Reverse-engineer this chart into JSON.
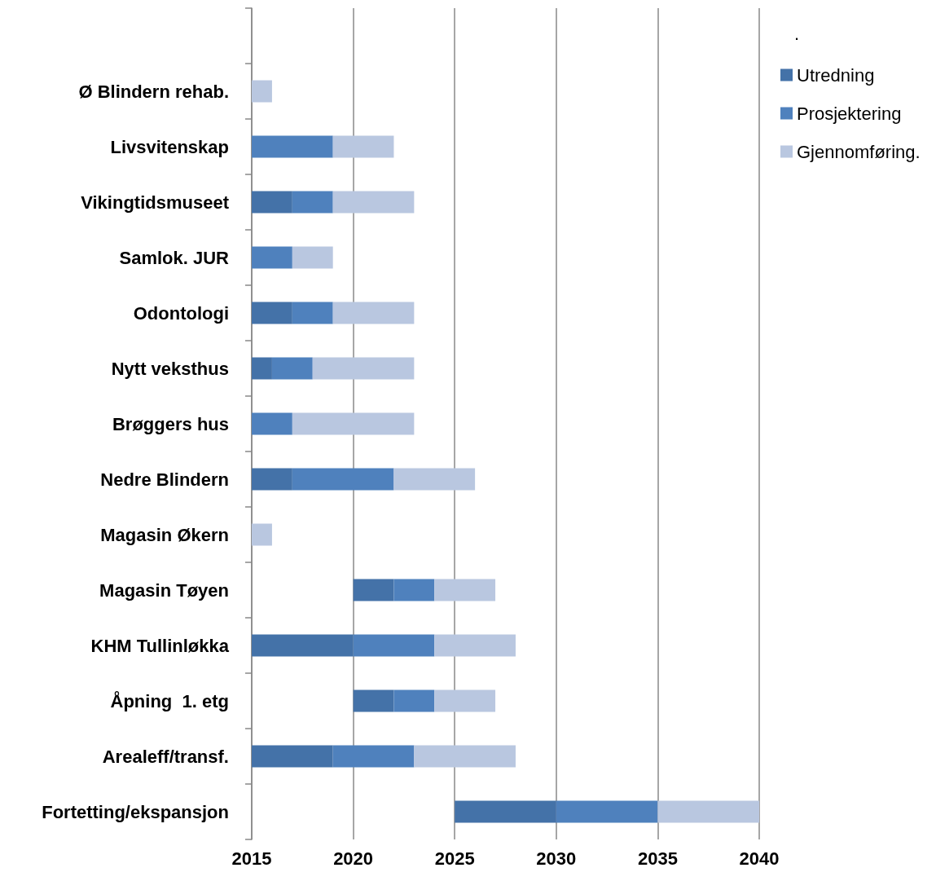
{
  "chart_data": {
    "type": "bar",
    "orientation": "horizontal",
    "categories": [
      null,
      "Ø Blindern rehab.",
      "Livsvitenskap",
      "Vikingtidsmuseet",
      "Samlok. JUR",
      "Odontologi",
      "Nytt veksthus",
      "Brøggers hus",
      "Nedre Blindern",
      "Magasin Økern",
      "Magasin Tøyen",
      "KHM Tullinløkka",
      "Åpning  1. etg",
      "Arealeff/transf.",
      "Fortetting/ekspansjon"
    ],
    "series": [
      {
        "name": "Utredning",
        "color": "#4472a8",
        "base": [
          null,
          null,
          null,
          2015,
          null,
          2015,
          2015,
          null,
          2015,
          null,
          2020,
          2015,
          2020,
          2015,
          2025
        ],
        "values": [
          null,
          null,
          null,
          2,
          null,
          2,
          1,
          null,
          2,
          null,
          2,
          5,
          2,
          4,
          5
        ]
      },
      {
        "name": "Prosjektering",
        "color": "#4f81bd",
        "base": [
          null,
          null,
          2015,
          2017,
          2015,
          2017,
          2016,
          2015,
          2017,
          null,
          2022,
          2020,
          2022,
          2019,
          2030
        ],
        "values": [
          null,
          null,
          4,
          2,
          2,
          2,
          2,
          2,
          5,
          null,
          2,
          4,
          2,
          4,
          5
        ]
      },
      {
        "name": "Gjennomføring.",
        "color": "#b9c7e0",
        "base": [
          null,
          2015,
          2019,
          2019,
          2017,
          2019,
          2018,
          2017,
          2022,
          2015,
          2024,
          2024,
          2024,
          2023,
          2035
        ],
        "values": [
          null,
          1,
          3,
          4,
          2,
          4,
          5,
          6,
          4,
          1,
          3,
          4,
          3,
          5,
          5
        ]
      }
    ],
    "xlim": [
      2015,
      2040
    ],
    "xticks": [
      2015,
      2020,
      2025,
      2030,
      2035,
      2040
    ],
    "grid": "x",
    "legend": "top right",
    "annotations": [
      "."
    ]
  }
}
